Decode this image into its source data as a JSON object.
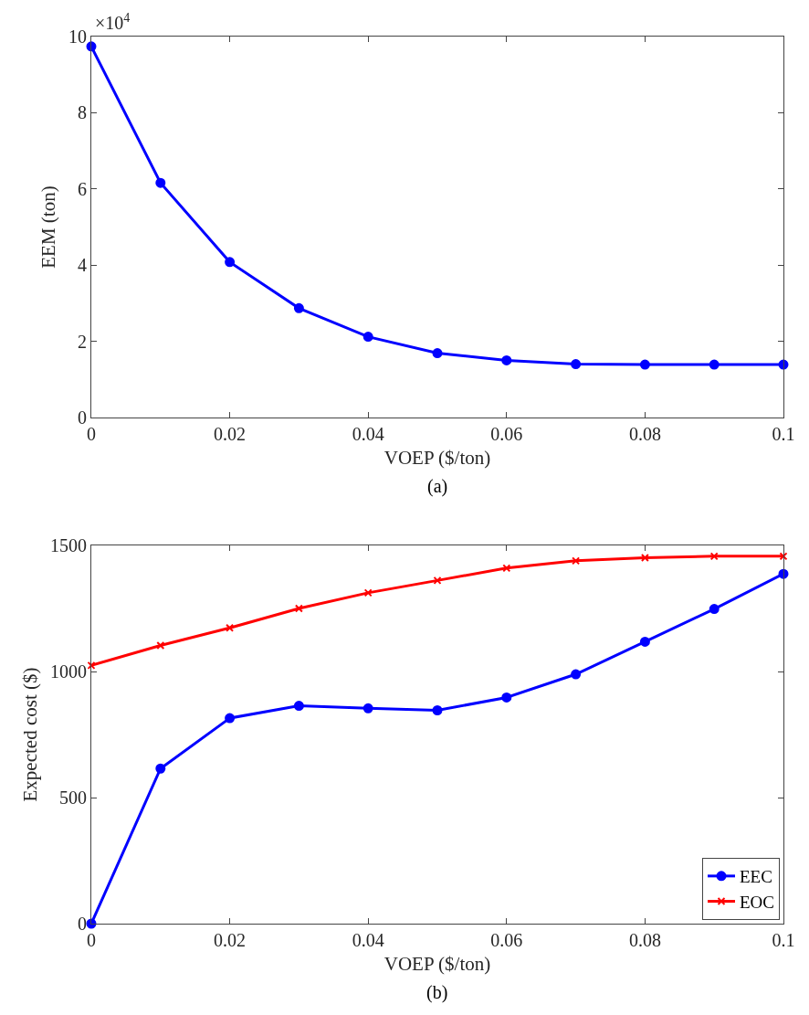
{
  "chart_data": [
    {
      "type": "line",
      "xlabel": "VOEP ($/ton)",
      "ylabel": "EEM (ton)",
      "marker": "circle",
      "line_style": "solid",
      "legend": false,
      "x": [
        0,
        0.01,
        0.02,
        0.03,
        0.04,
        0.05,
        0.06,
        0.07,
        0.08,
        0.09,
        0.1
      ],
      "series": [
        {
          "color": "#0000ff",
          "values": [
            9.74,
            6.16,
            4.08,
            2.87,
            2.12,
            1.69,
            1.5,
            1.4,
            1.39,
            1.39,
            1.39
          ]
        }
      ],
      "xlim": [
        0,
        0.1
      ],
      "xticks": [
        0,
        0.02,
        0.04,
        0.06,
        0.08,
        0.1
      ],
      "ylim": [
        0,
        10
      ],
      "yticks": [
        0,
        2,
        4,
        6,
        8,
        10
      ],
      "annotations": [
        "×10$^{4}$",
        "(a)"
      ]
    },
    {
      "type": "line",
      "xlabel": "VOEP ($/ton)",
      "ylabel": "Expected cost ($)",
      "line_style": "solid",
      "legend": "bottom right",
      "x": [
        0,
        0.01,
        0.02,
        0.03,
        0.04,
        0.05,
        0.06,
        0.07,
        0.08,
        0.09,
        0.1
      ],
      "series": [
        {
          "name": "EEC",
          "color": "#0000ff",
          "marker": "circle",
          "values": [
            0,
            615,
            815,
            864,
            854,
            846,
            897,
            989,
            1118,
            1248,
            1387
          ]
        },
        {
          "name": "EOC",
          "color": "#ff0000",
          "marker": "cross",
          "values": [
            1024,
            1103,
            1173,
            1250,
            1312,
            1361,
            1410,
            1439,
            1451,
            1457,
            1457
          ]
        }
      ],
      "xlim": [
        0,
        0.1
      ],
      "xticks": [
        0,
        0.02,
        0.04,
        0.06,
        0.08,
        0.1
      ],
      "ylim": [
        0,
        1500
      ],
      "yticks": [
        0,
        500,
        1000,
        1500
      ],
      "annotations": [
        "(b)"
      ]
    }
  ]
}
